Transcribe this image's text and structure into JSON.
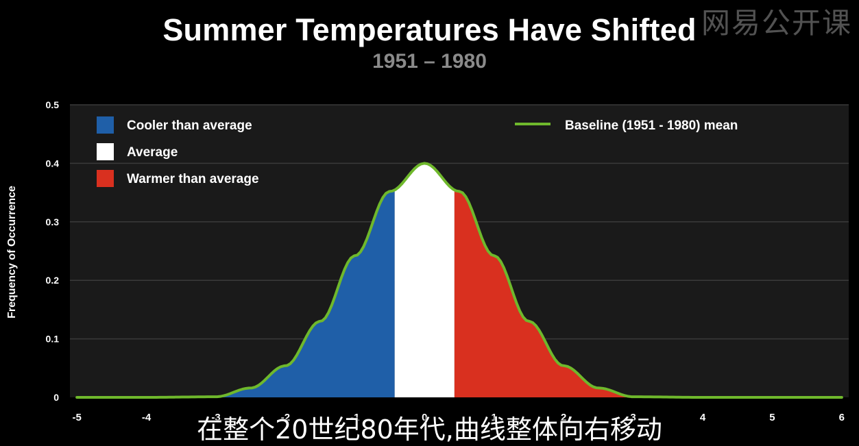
{
  "watermark": "网易公开课",
  "caption": "在整个20世纪80年代,曲线整体向右移动",
  "chart_data": {
    "type": "area",
    "title": "Summer Temperatures Have Shifted",
    "subtitle": "1951 – 1980",
    "xlabel": "",
    "ylabel": "Frequency of Occurrence",
    "xlim": [
      -5.1,
      6.1
    ],
    "ylim": [
      0,
      0.5
    ],
    "x_ticks": [
      -5,
      -4,
      -3,
      -2,
      -1,
      0,
      1,
      2,
      3,
      4,
      5,
      6
    ],
    "y_ticks": [
      0,
      0.1,
      0.2,
      0.3,
      0.4,
      0.5
    ],
    "y_tick_labels": [
      "0",
      "0.1",
      "0.2",
      "0.3",
      "0.4",
      "0.5"
    ],
    "grid": true,
    "legend": [
      {
        "name": "Cooler than average",
        "color": "#1f5fa8",
        "kind": "swatch"
      },
      {
        "name": "Average",
        "color": "#ffffff",
        "kind": "swatch"
      },
      {
        "name": "Warmer than average",
        "color": "#d9301f",
        "kind": "swatch"
      },
      {
        "name": "Baseline (1951 - 1980) mean",
        "color": "#6fb82c",
        "kind": "line"
      }
    ],
    "legend_position": "top",
    "regions": [
      {
        "name": "Cooler than average",
        "from": -3,
        "to": -0.43,
        "color": "#1f5fa8"
      },
      {
        "name": "Average",
        "from": -0.43,
        "to": 0.43,
        "color": "#ffffff"
      },
      {
        "name": "Warmer than average",
        "from": 0.43,
        "to": 3,
        "color": "#d9301f"
      }
    ],
    "series": [
      {
        "name": "Baseline (1951 - 1980) mean",
        "type": "line",
        "color": "#6fb82c",
        "x": [
          -5,
          -4,
          -3,
          -2.5,
          -2,
          -1.5,
          -1,
          -0.5,
          0,
          0.5,
          1,
          1.5,
          2,
          2.5,
          3,
          4,
          5,
          6
        ],
        "values": [
          0,
          0,
          0.001,
          0.016,
          0.054,
          0.13,
          0.242,
          0.352,
          0.4,
          0.352,
          0.242,
          0.13,
          0.054,
          0.016,
          0.001,
          0,
          0,
          0
        ]
      }
    ]
  }
}
